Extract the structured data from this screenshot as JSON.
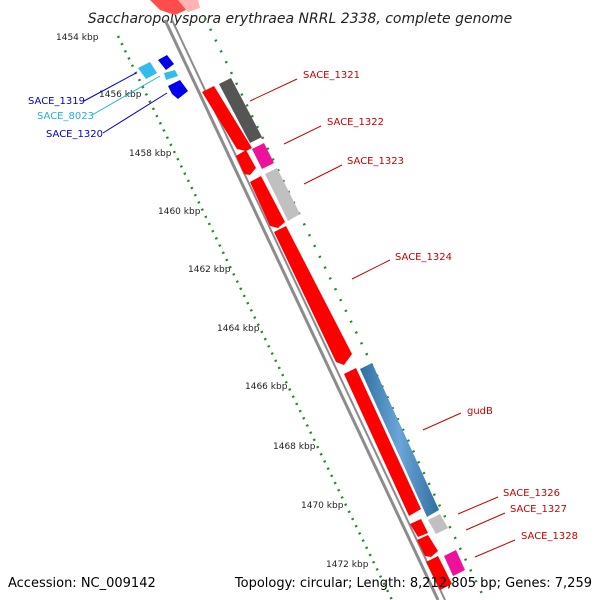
{
  "title": "Saccharopolyspora erythraea NRRL 2338, complete genome",
  "footer": {
    "accession": "Accession: NC_009142",
    "topology": "Topology: circular; Length: 8,212,805 bp; Genes: 7,259"
  },
  "colors": {
    "forward_cds": "#ff0000",
    "reverse_cds": "#0000ee",
    "forward_label": "#cc0000",
    "reverse_label": "#0000cc",
    "rna_label": "#20b2dd",
    "tick_marks": "#228b22",
    "backbone": "#8c8c8c"
  },
  "kbp_ticks": [
    "1454 kbp",
    "1456 kbp",
    "1458 kbp",
    "1460 kbp",
    "1462 kbp",
    "1464 kbp",
    "1466 kbp",
    "1468 kbp",
    "1470 kbp",
    "1472 kbp"
  ],
  "gene_labels": {
    "left": [
      "SACE_1319",
      "SACE_8023",
      "SACE_1320"
    ],
    "right": [
      "SACE_1321",
      "SACE_1322",
      "SACE_1323",
      "SACE_1324",
      "gudB",
      "SACE_1326",
      "SACE_1327",
      "SACE_1328"
    ]
  }
}
